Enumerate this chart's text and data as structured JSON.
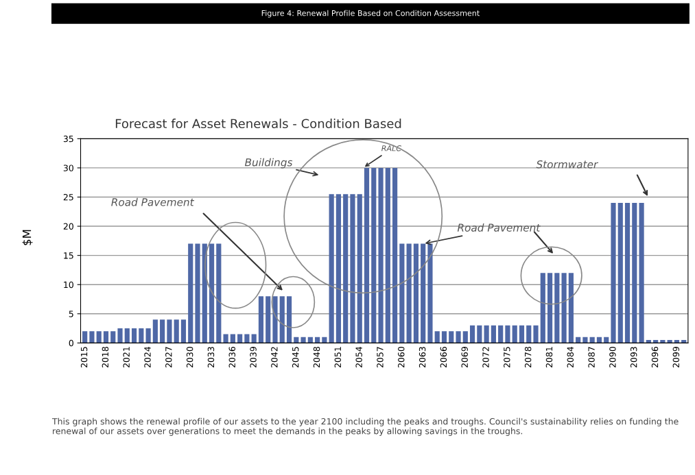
{
  "chart_data": {
    "type": "bar",
    "title": "Figure 4: Renewal Profile Based on Condition Assessment",
    "subtitle": "Forecast for Asset Renewals - Condition Based",
    "ylabel": "$M",
    "categories": [
      "2015",
      null,
      null,
      "2018",
      null,
      null,
      "2021",
      null,
      null,
      "2024",
      null,
      null,
      "2027",
      null,
      null,
      "2030",
      null,
      null,
      "2033",
      null,
      null,
      "2036",
      null,
      null,
      "2039",
      null,
      null,
      "2042",
      null,
      null,
      "2045",
      null,
      null,
      "2048",
      null,
      null,
      "2051",
      null,
      null,
      "2054",
      null,
      null,
      "2057",
      null,
      null,
      "2060",
      null,
      null,
      "2063",
      null,
      null,
      "2066",
      null,
      null,
      "2069",
      null,
      null,
      "2072",
      null,
      null,
      "2075",
      null,
      null,
      "2078",
      null,
      null,
      "2081",
      null,
      null,
      "2084",
      null,
      null,
      "2087",
      null,
      null,
      "2090",
      null,
      null,
      "2093",
      null,
      null,
      "2096",
      null,
      null,
      "2099",
      null
    ],
    "values": [
      2,
      2,
      2,
      2,
      2,
      2.5,
      2.5,
      2.5,
      2.5,
      2.5,
      4,
      4,
      4,
      4,
      4,
      17,
      17,
      17,
      17,
      17,
      1.5,
      1.5,
      1.5,
      1.5,
      1.5,
      8,
      8,
      8,
      8,
      8,
      1,
      1,
      1,
      1,
      1,
      25.5,
      25.5,
      25.5,
      25.5,
      25.5,
      30,
      30,
      30,
      30,
      30,
      17,
      17,
      17,
      17,
      17,
      2,
      2,
      2,
      2,
      2,
      3,
      3,
      3,
      3,
      3,
      3,
      3,
      3,
      3,
      3,
      12,
      12,
      12,
      12,
      12,
      1,
      1,
      1,
      1,
      1,
      24,
      24,
      24,
      24,
      24,
      0.5,
      0.5,
      0.5,
      0.5,
      0.5,
      0.5
    ],
    "color": "#4f68a6",
    "ylim": [
      0,
      35
    ],
    "yticks": [
      0,
      5,
      10,
      15,
      20,
      25,
      30,
      35
    ],
    "grid": "y",
    "legend": false,
    "annotations": [
      "Road Pavement",
      "Buildings",
      {
        "text": "RALC",
        "y": 30
      },
      {
        "text": "Road Pavement",
        "x": "2063",
        "y": 17
      },
      "Stormwater",
      "This graph shows the renewal profile of our assets to the year 2100 including the peaks and troughs. Council's sustainability relies on funding the renewal of our assets over generations to meet the demands in the peaks by allowing savings in the troughs."
    ]
  }
}
